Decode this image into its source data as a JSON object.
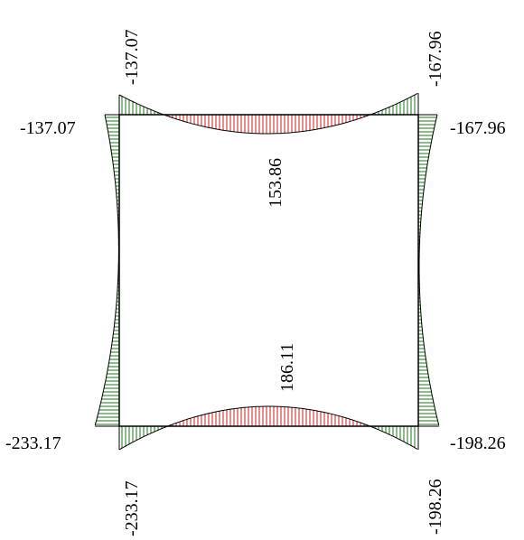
{
  "colors": {
    "frame": "#000000",
    "hatch_negative": "#1a7a1a",
    "hatch_positive": "#d01818",
    "background": "#ffffff"
  },
  "labels": {
    "top_left_rot": "-137.07",
    "top_right_rot": "-167.96",
    "top_left_side": "-137.07",
    "top_right_side": "-167.96",
    "top_mid": "153.86",
    "bottom_mid": "186.11",
    "bottom_left_side": "-233.17",
    "bottom_right_side": "-198.26",
    "bottom_left_rot": "-233.17",
    "bottom_right_rot": "-198.26"
  }
}
